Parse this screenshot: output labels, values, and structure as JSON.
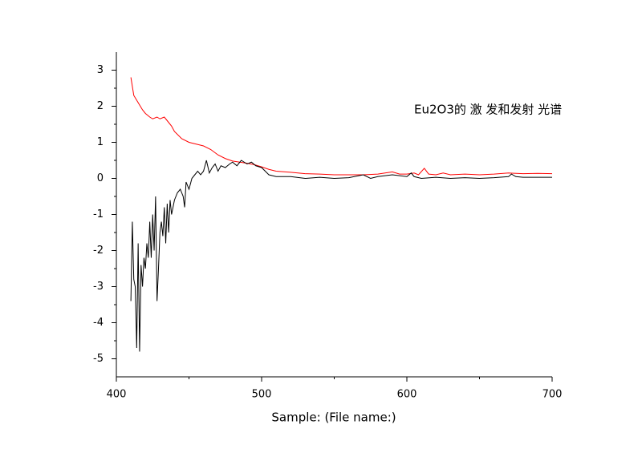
{
  "chart_data": {
    "type": "line",
    "annotation": "Eu2O3的 激 发和发射 光谱",
    "x_label": "Sample: (File name:)",
    "xlim": [
      400,
      700
    ],
    "xticks": [
      400,
      500,
      600,
      700
    ],
    "ylim": [
      -5.5,
      3.5
    ],
    "yticks": [
      -5,
      -4,
      -3,
      -2,
      -1,
      0,
      1,
      2,
      3
    ],
    "series": [
      {
        "color": "#ff0000",
        "x": [
          410,
          412,
          415,
          418,
          420,
          423,
          425,
          428,
          430,
          433,
          435,
          438,
          440,
          445,
          450,
          455,
          460,
          465,
          470,
          475,
          480,
          485,
          490,
          495,
          500,
          505,
          510,
          520,
          530,
          540,
          550,
          560,
          570,
          580,
          590,
          595,
          600,
          605,
          608,
          612,
          615,
          620,
          625,
          630,
          640,
          650,
          660,
          670,
          680,
          690,
          700
        ],
        "values": [
          2.8,
          2.3,
          2.1,
          1.9,
          1.8,
          1.7,
          1.65,
          1.7,
          1.65,
          1.7,
          1.6,
          1.45,
          1.3,
          1.1,
          1.0,
          0.95,
          0.9,
          0.8,
          0.65,
          0.55,
          0.48,
          0.45,
          0.42,
          0.38,
          0.32,
          0.25,
          0.2,
          0.17,
          0.13,
          0.12,
          0.1,
          0.1,
          0.1,
          0.12,
          0.18,
          0.12,
          0.12,
          0.15,
          0.1,
          0.28,
          0.12,
          0.1,
          0.15,
          0.1,
          0.12,
          0.1,
          0.12,
          0.15,
          0.13,
          0.14,
          0.13
        ]
      },
      {
        "color": "#000000",
        "x": [
          410,
          411,
          412,
          413,
          414,
          415,
          416,
          417,
          418,
          419,
          420,
          421,
          422,
          423,
          424,
          425,
          426,
          427,
          428,
          429,
          430,
          431,
          432,
          433,
          434,
          435,
          436,
          437,
          438,
          440,
          442,
          444,
          446,
          447,
          448,
          450,
          452,
          454,
          456,
          458,
          460,
          462,
          464,
          466,
          468,
          470,
          472,
          475,
          478,
          480,
          483,
          486,
          490,
          493,
          496,
          500,
          505,
          510,
          520,
          530,
          540,
          550,
          560,
          570,
          575,
          580,
          590,
          600,
          603,
          605,
          610,
          620,
          630,
          640,
          650,
          660,
          670,
          672,
          675,
          680,
          700
        ],
        "values": [
          -3.4,
          -1.2,
          -2.8,
          -3.0,
          -4.7,
          -1.8,
          -4.8,
          -2.4,
          -3.0,
          -2.2,
          -2.5,
          -1.8,
          -2.2,
          -1.2,
          -2.2,
          -1.0,
          -2.0,
          -0.5,
          -3.4,
          -2.5,
          -1.5,
          -1.2,
          -1.6,
          -0.8,
          -1.8,
          -0.7,
          -1.5,
          -0.6,
          -1.0,
          -0.6,
          -0.4,
          -0.3,
          -0.5,
          -0.8,
          -0.1,
          -0.3,
          0,
          0.1,
          0.2,
          0.1,
          0.2,
          0.5,
          0.15,
          0.3,
          0.4,
          0.2,
          0.35,
          0.3,
          0.4,
          0.45,
          0.35,
          0.5,
          0.4,
          0.45,
          0.35,
          0.3,
          0.1,
          0.05,
          0.05,
          0.0,
          0.03,
          0.0,
          0.02,
          0.1,
          0.0,
          0.05,
          0.1,
          0.05,
          0.15,
          0.05,
          0.0,
          0.03,
          0.0,
          0.02,
          0.0,
          0.02,
          0.05,
          0.12,
          0.05,
          0.03,
          0.03
        ]
      }
    ]
  }
}
